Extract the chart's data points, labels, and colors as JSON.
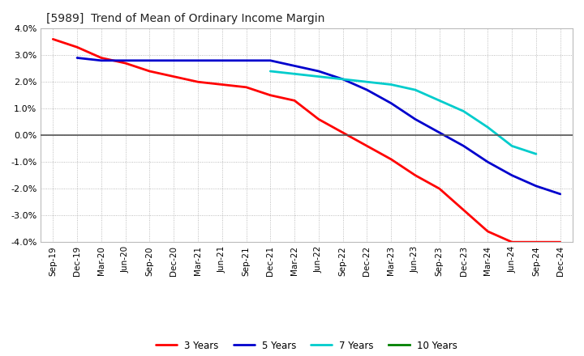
{
  "title": "[5989]  Trend of Mean of Ordinary Income Margin",
  "x_labels": [
    "Sep-19",
    "Dec-19",
    "Mar-20",
    "Jun-20",
    "Sep-20",
    "Dec-20",
    "Mar-21",
    "Jun-21",
    "Sep-21",
    "Dec-21",
    "Mar-22",
    "Jun-22",
    "Sep-22",
    "Dec-22",
    "Mar-23",
    "Jun-23",
    "Sep-23",
    "Dec-23",
    "Mar-24",
    "Jun-24",
    "Sep-24",
    "Dec-24"
  ],
  "ylim": [
    -0.04,
    0.04
  ],
  "yticks": [
    -0.04,
    -0.03,
    -0.02,
    -0.01,
    0.0,
    0.01,
    0.02,
    0.03,
    0.04
  ],
  "series": {
    "3 Years": {
      "color": "#FF0000",
      "data_x": [
        0,
        1,
        2,
        3,
        4,
        5,
        6,
        7,
        8,
        9,
        10,
        11,
        12,
        13,
        14,
        15,
        16,
        17,
        18,
        19,
        20,
        21
      ],
      "data_y": [
        0.036,
        0.033,
        0.029,
        0.027,
        0.024,
        0.022,
        0.02,
        0.019,
        0.018,
        0.015,
        0.013,
        0.006,
        0.001,
        -0.004,
        -0.009,
        -0.015,
        -0.02,
        -0.028,
        -0.036,
        -0.04,
        -0.04,
        -0.04
      ]
    },
    "5 Years": {
      "color": "#0000CD",
      "data_x": [
        1,
        2,
        3,
        4,
        5,
        6,
        7,
        8,
        9,
        10,
        11,
        12,
        13,
        14,
        15,
        16,
        17,
        18,
        19,
        20,
        21
      ],
      "data_y": [
        0.029,
        0.028,
        0.028,
        0.028,
        0.028,
        0.028,
        0.028,
        0.028,
        0.028,
        0.026,
        0.024,
        0.021,
        0.017,
        0.012,
        0.006,
        0.001,
        -0.004,
        -0.01,
        -0.015,
        -0.019,
        -0.022
      ]
    },
    "7 Years": {
      "color": "#00CCCC",
      "data_x": [
        9,
        10,
        11,
        12,
        13,
        14,
        15,
        16,
        17,
        18,
        19,
        20
      ],
      "data_y": [
        0.024,
        0.023,
        0.022,
        0.021,
        0.02,
        0.019,
        0.017,
        0.013,
        0.009,
        0.003,
        -0.004,
        -0.007
      ]
    },
    "10 Years": {
      "color": "#008000",
      "data_x": [],
      "data_y": []
    }
  },
  "background_color": "#FFFFFF",
  "plot_bg_color": "#FFFFFF",
  "grid_color": "#AAAAAA",
  "zero_line_color": "#555555"
}
